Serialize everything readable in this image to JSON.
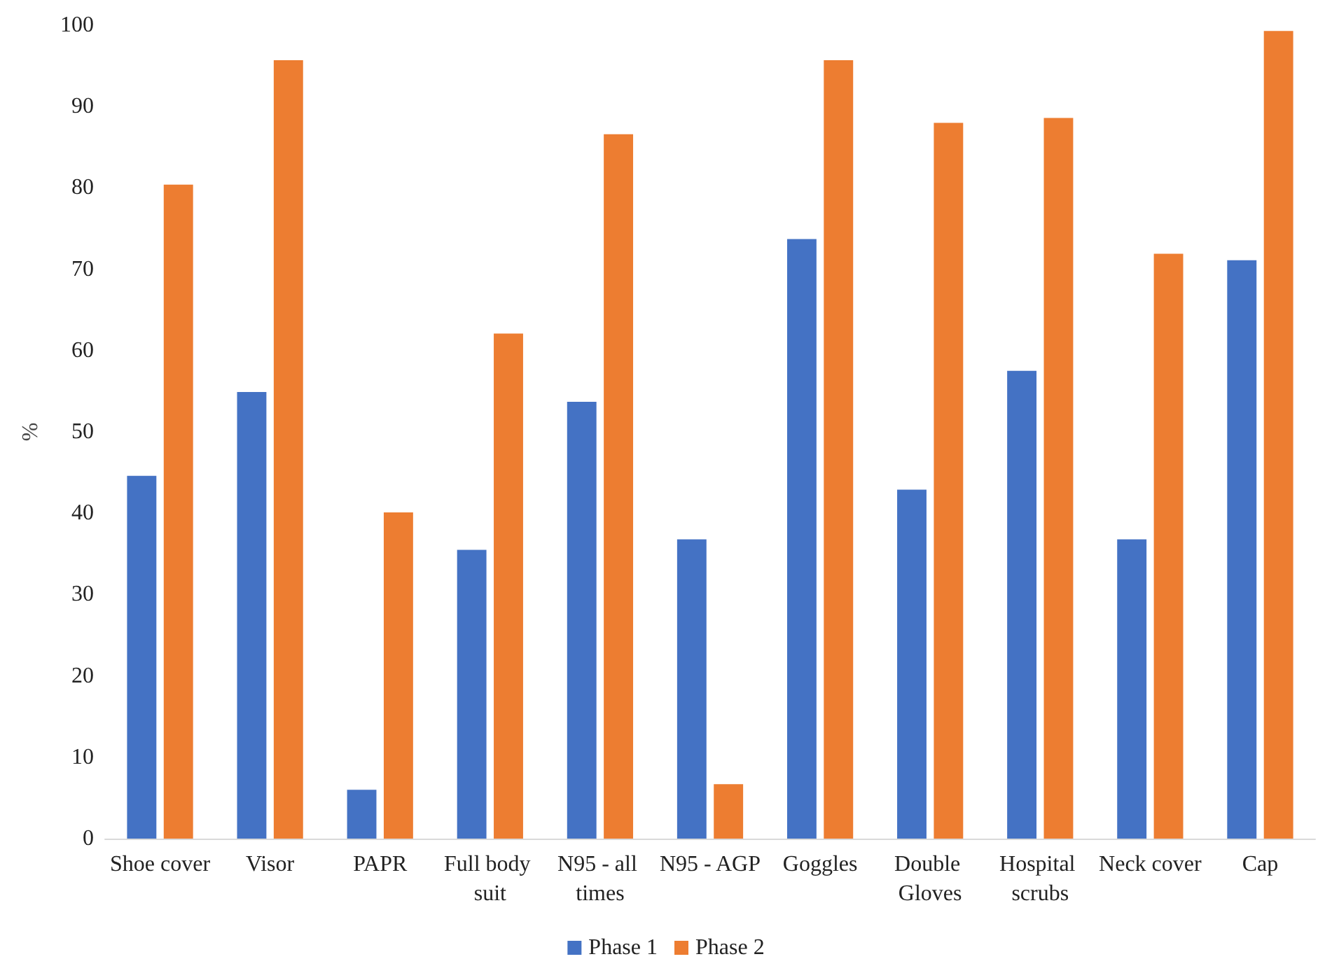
{
  "chart_data": {
    "type": "bar",
    "ylabel": "%",
    "categories": [
      "Shoe cover",
      "Visor",
      "PAPR",
      "Full body suit",
      "N95 - all times",
      "N95 - AGP",
      "Goggles",
      "Double Gloves",
      "Hospital scrubs",
      "Neck cover",
      "Cap"
    ],
    "series": [
      {
        "name": "Phase 1",
        "color": "#4472c4",
        "values": [
          44.6,
          54.9,
          6.0,
          35.5,
          53.7,
          36.8,
          73.7,
          42.9,
          57.5,
          36.8,
          71.1
        ]
      },
      {
        "name": "Phase 2",
        "color": "#ed7d31",
        "values": [
          80.4,
          95.7,
          40.1,
          62.1,
          86.6,
          6.7,
          95.7,
          88.0,
          88.6,
          71.9,
          99.3
        ]
      }
    ],
    "ylim": [
      0,
      100
    ],
    "yticks": [
      0,
      10,
      20,
      30,
      40,
      50,
      60,
      70,
      80,
      90,
      100
    ],
    "grid": false,
    "legend": "bottom"
  }
}
